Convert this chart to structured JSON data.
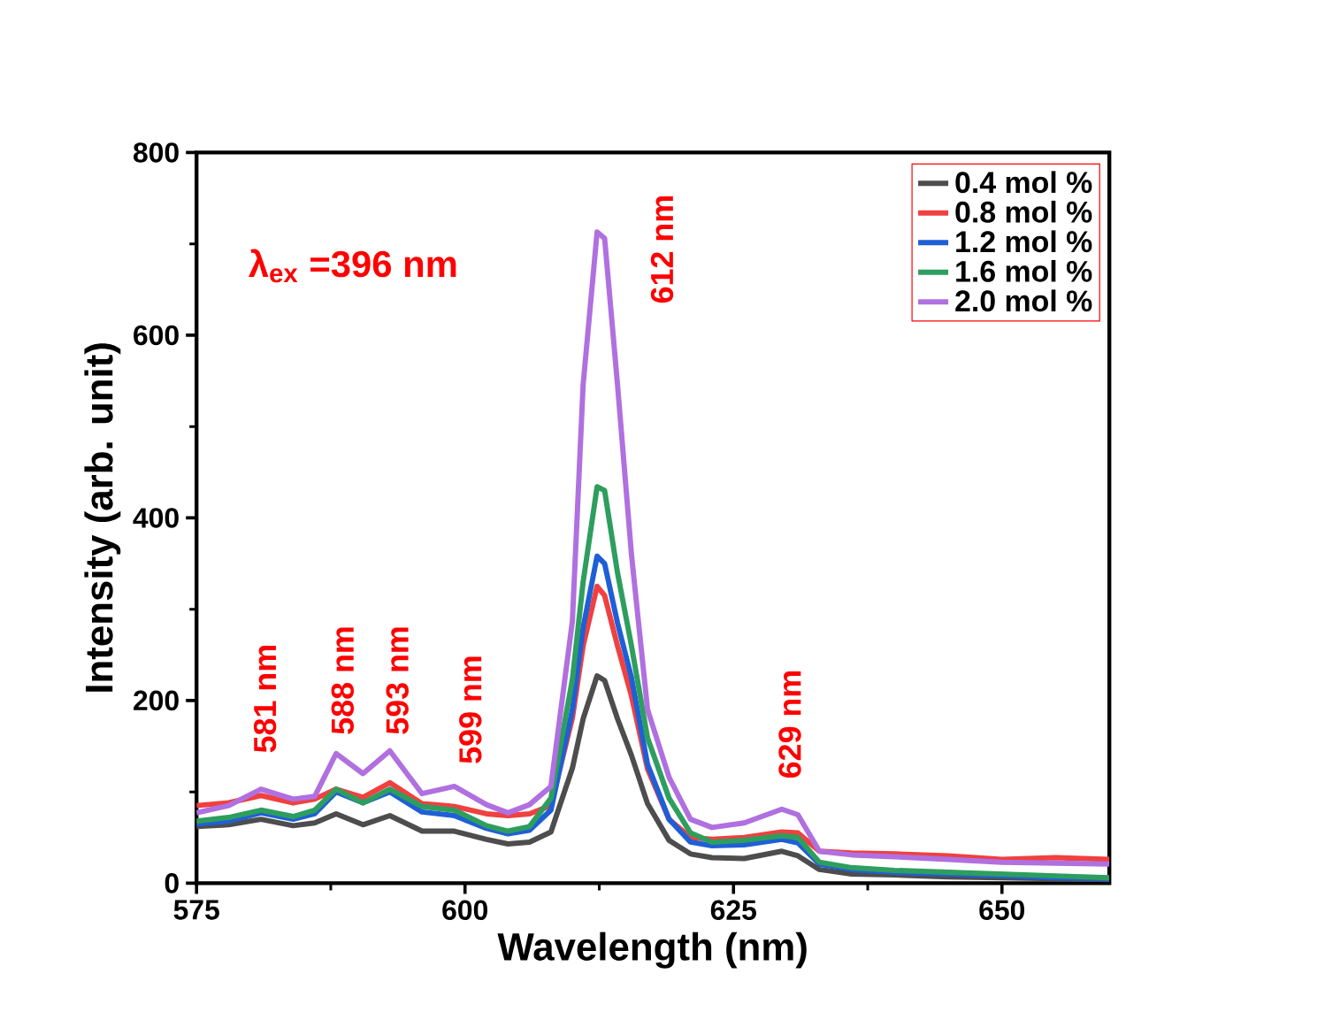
{
  "chart_data": {
    "type": "line",
    "xlabel": "Wavelength (nm)",
    "ylabel": "Intensity (arb. unit)",
    "x": [
      575,
      578,
      581,
      584,
      586,
      588,
      590.5,
      593,
      596,
      599,
      602,
      604,
      606,
      608,
      610,
      611,
      612.3,
      613,
      614.2,
      615.5,
      617,
      619,
      621,
      623,
      626,
      629.5,
      631,
      633,
      636,
      640,
      645,
      650,
      655,
      660
    ],
    "series": [
      {
        "name": "0.4 mol %",
        "color": "#4d4d4d",
        "values": [
          62,
          64,
          70,
          63,
          66,
          76,
          64,
          74,
          57,
          57,
          48,
          43,
          45,
          56,
          126,
          180,
          227,
          222,
          180,
          140,
          87,
          47,
          32,
          28,
          27,
          35,
          30,
          15,
          10,
          9,
          7,
          6,
          5,
          4
        ]
      },
      {
        "name": "0.8 mol %",
        "color": "#f04040",
        "values": [
          85,
          88,
          96,
          88,
          92,
          103,
          94,
          110,
          87,
          84,
          76,
          74,
          76,
          85,
          181,
          260,
          325,
          315,
          260,
          205,
          125,
          70,
          50,
          48,
          50,
          56,
          55,
          35,
          33,
          32,
          30,
          26,
          28,
          26
        ]
      },
      {
        "name": "1.2 mol %",
        "color": "#1f5fd6",
        "values": [
          65,
          68,
          77,
          70,
          76,
          100,
          88,
          100,
          78,
          74,
          60,
          54,
          58,
          80,
          190,
          280,
          358,
          350,
          285,
          225,
          130,
          70,
          45,
          41,
          42,
          48,
          44,
          21,
          15,
          12,
          10,
          8,
          6,
          5
        ]
      },
      {
        "name": "1.6 mol %",
        "color": "#2e9e5e",
        "values": [
          68,
          72,
          80,
          73,
          80,
          103,
          88,
          103,
          84,
          80,
          63,
          57,
          62,
          93,
          223,
          330,
          434,
          430,
          340,
          260,
          159,
          93,
          55,
          45,
          47,
          52,
          50,
          23,
          17,
          14,
          12,
          10,
          8,
          6
        ]
      },
      {
        "name": "2.0 mol %",
        "color": "#b070e0",
        "values": [
          77,
          85,
          103,
          92,
          95,
          142,
          120,
          145,
          98,
          106,
          86,
          77,
          86,
          106,
          287,
          546,
          713,
          706,
          546,
          360,
          190,
          116,
          70,
          61,
          66,
          81,
          75,
          35,
          31,
          29,
          26,
          23,
          22,
          21
        ]
      }
    ],
    "annotations": [
      "λ$_{ex}$ =396 nm",
      "581 nm",
      "588 nm",
      "593 nm",
      "599 nm",
      "612 nm",
      "629 nm"
    ],
    "xlim": [
      575,
      660
    ],
    "ylim": [
      0,
      800
    ],
    "xticks": [
      575,
      600,
      625,
      650
    ],
    "yticks": [
      0,
      200,
      400,
      600,
      800
    ],
    "grid": false,
    "legend": "top right",
    "marker": "none",
    "line_style": "solid"
  }
}
